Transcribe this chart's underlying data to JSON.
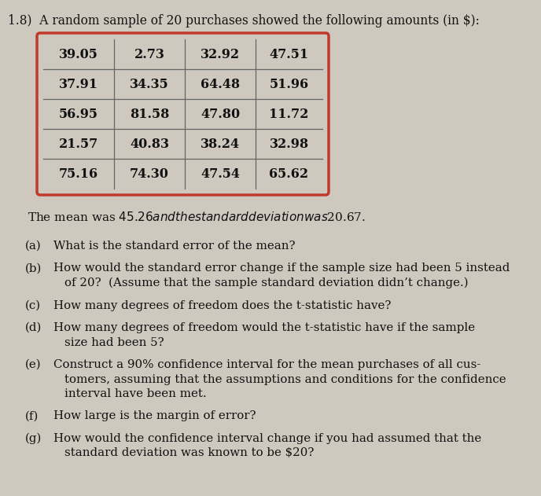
{
  "background_color": "#cec8be",
  "title_text": "1.8)  A random sample of 20 purchases showed the following amounts (in $):",
  "table_data": [
    [
      "39.05",
      "2.73",
      "32.92",
      "47.51"
    ],
    [
      "37.91",
      "34.35",
      "64.48",
      "51.96"
    ],
    [
      "56.95",
      "81.58",
      "47.80",
      "11.72"
    ],
    [
      "21.57",
      "40.83",
      "38.24",
      "32.98"
    ],
    [
      "75.16",
      "74.30",
      "47.54",
      "65.62"
    ]
  ],
  "table_border_color": "#c0392b",
  "mean_text": "The mean was $45.26 and the standard deviation was $20.67.",
  "items": [
    {
      "label": "(a)",
      "text": "What is the standard error of the mean?",
      "lines": 1
    },
    {
      "label": "(b)",
      "text": "How would the standard error change if the sample size had been 5 instead\nof 20?  (Assume that the sample standard deviation didn’t change.)",
      "lines": 2
    },
    {
      "label": "(c)",
      "text": "How many degrees of freedom does the t-statistic have?",
      "lines": 1
    },
    {
      "label": "(d)",
      "text": "How many degrees of freedom would the t-statistic have if the sample\nsize had been 5?",
      "lines": 2
    },
    {
      "label": "(e)",
      "text": "Construct a 90% confidence interval for the mean purchases of all cus-\ntomers, assuming that the assumptions and conditions for the confidence\ninterval have been met.",
      "lines": 3
    },
    {
      "label": "(f)",
      "text": "How large is the margin of error?",
      "lines": 1
    },
    {
      "label": "(g)",
      "text": "How would the confidence interval change if you had assumed that the\nstandard deviation was known to be $20?",
      "lines": 2
    }
  ],
  "title_fontsize": 11.2,
  "body_fontsize": 10.8,
  "mean_fontsize": 11.0,
  "table_fontsize": 11.5,
  "text_color": "#111111"
}
